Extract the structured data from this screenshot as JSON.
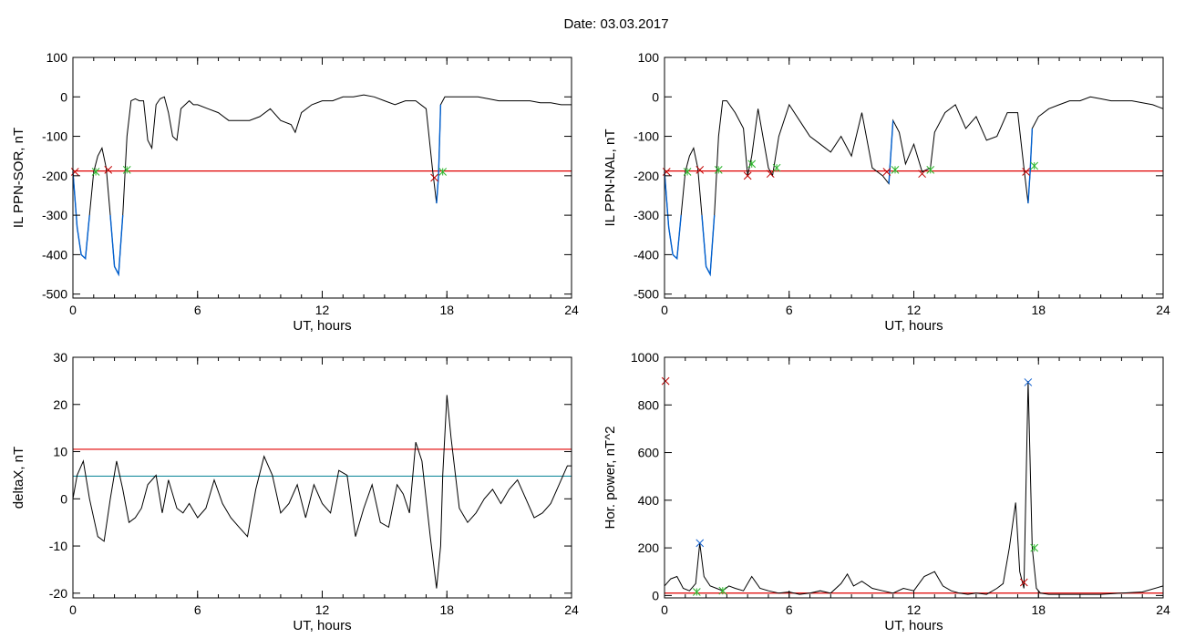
{
  "page_title": "Date:  03.03.2017",
  "colors": {
    "data": "#000000",
    "threshold": "#e00000",
    "cyan": "#1f8fa0",
    "blue": "#0060d0",
    "green": "#2ab52a",
    "red_marker": "#c00000",
    "blue_marker": "#1060d0"
  },
  "chart_data": [
    {
      "type": "line",
      "xlabel": "UT, hours",
      "ylabel": "IL PPN-SOR, nT",
      "xlim": [
        0,
        24
      ],
      "ylim": [
        -510,
        100
      ],
      "xticks": [
        0,
        6,
        12,
        18,
        24
      ],
      "yticks": [
        100,
        0,
        -100,
        -200,
        -300,
        -400,
        -500
      ],
      "thresholds": [
        {
          "value": -188,
          "color": "red"
        }
      ],
      "x": [
        0,
        0.2,
        0.4,
        0.6,
        0.8,
        1.0,
        1.2,
        1.4,
        1.6,
        1.8,
        2.0,
        2.2,
        2.4,
        2.6,
        2.8,
        3.0,
        3.2,
        3.4,
        3.6,
        3.8,
        4.0,
        4.2,
        4.4,
        4.6,
        4.8,
        5.0,
        5.2,
        5.4,
        5.6,
        5.8,
        6.0,
        6.5,
        7.0,
        7.5,
        8.0,
        8.5,
        9.0,
        9.5,
        10.0,
        10.5,
        10.7,
        11.0,
        11.5,
        12.0,
        12.5,
        13.0,
        13.5,
        14.0,
        14.5,
        15.0,
        15.5,
        16.0,
        16.5,
        17.0,
        17.3,
        17.5,
        17.6,
        17.7,
        17.9,
        18.1,
        18.5,
        19.0,
        19.5,
        20.0,
        20.5,
        21.0,
        21.5,
        22.0,
        22.5,
        23.0,
        23.5,
        24.0
      ],
      "values": [
        -190,
        -330,
        -400,
        -410,
        -300,
        -190,
        -150,
        -130,
        -180,
        -300,
        -430,
        -450,
        -300,
        -100,
        -10,
        -5,
        -10,
        -10,
        -110,
        -130,
        -20,
        -5,
        0,
        -40,
        -100,
        -110,
        -30,
        -20,
        -10,
        -20,
        -20,
        -30,
        -40,
        -60,
        -60,
        -60,
        -50,
        -30,
        -60,
        -70,
        -90,
        -40,
        -20,
        -10,
        -10,
        0,
        0,
        5,
        0,
        -10,
        -20,
        -10,
        -10,
        -30,
        -180,
        -270,
        -200,
        -20,
        0,
        0,
        0,
        0,
        0,
        -5,
        -10,
        -10,
        -10,
        -10,
        -15,
        -15,
        -20,
        -20
      ],
      "highlights": [
        {
          "x0": 0,
          "x1": 0.9
        },
        {
          "x0": 1.75,
          "x1": 2.45
        },
        {
          "x0": 17.35,
          "x1": 17.75
        }
      ],
      "markers": [
        {
          "x": 0.1,
          "y": -190,
          "color": "red"
        },
        {
          "x": 1.1,
          "y": -190,
          "color": "green"
        },
        {
          "x": 1.7,
          "y": -185,
          "color": "red"
        },
        {
          "x": 2.6,
          "y": -185,
          "color": "green"
        },
        {
          "x": 17.4,
          "y": -205,
          "color": "red"
        },
        {
          "x": 17.8,
          "y": -190,
          "color": "green"
        }
      ]
    },
    {
      "type": "line",
      "xlabel": "UT, hours",
      "ylabel": "IL PPN-NAL, nT",
      "xlim": [
        0,
        24
      ],
      "ylim": [
        -510,
        100
      ],
      "xticks": [
        0,
        6,
        12,
        18,
        24
      ],
      "yticks": [
        100,
        0,
        -100,
        -200,
        -300,
        -400,
        -500
      ],
      "thresholds": [
        {
          "value": -188,
          "color": "red"
        }
      ],
      "x": [
        0,
        0.2,
        0.4,
        0.6,
        0.8,
        1.0,
        1.2,
        1.4,
        1.6,
        1.8,
        2.0,
        2.2,
        2.4,
        2.6,
        2.8,
        3.0,
        3.4,
        3.8,
        4.0,
        4.2,
        4.5,
        5.0,
        5.2,
        5.5,
        6.0,
        6.5,
        7.0,
        7.5,
        8.0,
        8.5,
        9.0,
        9.5,
        10.0,
        10.5,
        10.8,
        11.0,
        11.3,
        11.6,
        12.0,
        12.4,
        12.8,
        13.0,
        13.5,
        14.0,
        14.5,
        15.0,
        15.5,
        16.0,
        16.5,
        17.0,
        17.3,
        17.5,
        17.6,
        17.7,
        18.0,
        18.5,
        19.0,
        19.5,
        20.0,
        20.5,
        21.0,
        21.5,
        22.0,
        22.5,
        23.0,
        23.5,
        24.0
      ],
      "values": [
        -190,
        -330,
        -400,
        -410,
        -300,
        -190,
        -150,
        -130,
        -180,
        -300,
        -430,
        -450,
        -300,
        -100,
        -10,
        -10,
        -40,
        -80,
        -200,
        -150,
        -30,
        -180,
        -200,
        -100,
        -20,
        -60,
        -100,
        -120,
        -140,
        -100,
        -150,
        -40,
        -180,
        -200,
        -220,
        -60,
        -90,
        -170,
        -120,
        -190,
        -180,
        -90,
        -40,
        -20,
        -80,
        -50,
        -110,
        -100,
        -40,
        -40,
        -180,
        -270,
        -190,
        -80,
        -50,
        -30,
        -20,
        -10,
        -10,
        0,
        -5,
        -10,
        -10,
        -10,
        -15,
        -20,
        -30
      ],
      "highlights": [
        {
          "x0": 0,
          "x1": 0.9
        },
        {
          "x0": 1.75,
          "x1": 2.45
        },
        {
          "x0": 3.95,
          "x1": 4.15
        },
        {
          "x0": 10.7,
          "x1": 11.05
        },
        {
          "x0": 17.35,
          "x1": 17.75
        }
      ],
      "markers": [
        {
          "x": 0.1,
          "y": -190,
          "color": "red"
        },
        {
          "x": 1.1,
          "y": -190,
          "color": "green"
        },
        {
          "x": 1.7,
          "y": -185,
          "color": "red"
        },
        {
          "x": 2.6,
          "y": -185,
          "color": "green"
        },
        {
          "x": 4.0,
          "y": -200,
          "color": "red"
        },
        {
          "x": 4.2,
          "y": -170,
          "color": "green"
        },
        {
          "x": 5.1,
          "y": -195,
          "color": "red"
        },
        {
          "x": 5.4,
          "y": -180,
          "color": "green"
        },
        {
          "x": 10.7,
          "y": -190,
          "color": "red"
        },
        {
          "x": 11.1,
          "y": -185,
          "color": "green"
        },
        {
          "x": 12.4,
          "y": -195,
          "color": "red"
        },
        {
          "x": 12.8,
          "y": -185,
          "color": "green"
        },
        {
          "x": 17.4,
          "y": -190,
          "color": "red"
        },
        {
          "x": 17.8,
          "y": -175,
          "color": "green"
        }
      ]
    },
    {
      "type": "line",
      "xlabel": "UT, hours",
      "ylabel": "deltaX, nT",
      "xlim": [
        0,
        24
      ],
      "ylim": [
        -21,
        30
      ],
      "xticks": [
        0,
        6,
        12,
        18,
        24
      ],
      "yticks": [
        30,
        20,
        10,
        0,
        -10,
        -20
      ],
      "thresholds": [
        {
          "value": 10.5,
          "color": "red"
        },
        {
          "value": 4.8,
          "color": "cyan"
        }
      ],
      "x": [
        0,
        0.2,
        0.5,
        0.8,
        1.2,
        1.5,
        1.8,
        2.1,
        2.4,
        2.7,
        3.0,
        3.3,
        3.6,
        4.0,
        4.3,
        4.6,
        5.0,
        5.3,
        5.6,
        6.0,
        6.4,
        6.8,
        7.2,
        7.6,
        8.0,
        8.4,
        8.8,
        9.2,
        9.6,
        10.0,
        10.4,
        10.8,
        11.2,
        11.6,
        12.0,
        12.4,
        12.8,
        13.2,
        13.6,
        14.0,
        14.4,
        14.8,
        15.2,
        15.6,
        15.9,
        16.2,
        16.5,
        16.8,
        17.2,
        17.5,
        17.7,
        17.8,
        18.0,
        18.2,
        18.6,
        19.0,
        19.4,
        19.8,
        20.2,
        20.6,
        21.0,
        21.4,
        21.8,
        22.2,
        22.6,
        23.0,
        23.4,
        23.8,
        24.0
      ],
      "values": [
        0,
        5,
        8,
        0,
        -8,
        -9,
        0,
        8,
        2,
        -5,
        -4,
        -2,
        3,
        5,
        -3,
        4,
        -2,
        -3,
        -1,
        -4,
        -2,
        4,
        -1,
        -4,
        -6,
        -8,
        2,
        9,
        5,
        -3,
        -1,
        3,
        -4,
        3,
        -1,
        -3,
        6,
        5,
        -8,
        -2,
        3,
        -5,
        -6,
        3,
        1,
        -3,
        12,
        8,
        -8,
        -19,
        -10,
        5,
        22,
        13,
        -2,
        -5,
        -3,
        0,
        2,
        -1,
        2,
        4,
        0,
        -4,
        -3,
        -1,
        3,
        7,
        7
      ],
      "markers": []
    },
    {
      "type": "line",
      "xlabel": "UT, hours",
      "ylabel": "Hor. power, nT^2",
      "xlim": [
        0,
        24
      ],
      "ylim": [
        -10,
        1000
      ],
      "xticks": [
        0,
        6,
        12,
        18,
        24
      ],
      "yticks": [
        1000,
        800,
        600,
        400,
        200,
        0
      ],
      "thresholds": [
        {
          "value": 10,
          "color": "red"
        }
      ],
      "x": [
        0,
        0.3,
        0.6,
        0.9,
        1.2,
        1.5,
        1.7,
        1.9,
        2.2,
        2.5,
        2.8,
        3.1,
        3.4,
        3.8,
        4.2,
        4.6,
        5.0,
        5.5,
        6.0,
        6.5,
        7.0,
        7.5,
        8.0,
        8.5,
        8.8,
        9.1,
        9.5,
        10.0,
        10.5,
        11.0,
        11.5,
        12.0,
        12.5,
        13.0,
        13.4,
        13.8,
        14.2,
        14.6,
        15.0,
        15.5,
        16.0,
        16.3,
        16.6,
        16.9,
        17.1,
        17.3,
        17.5,
        17.7,
        17.9,
        18.1,
        18.5,
        19.0,
        19.5,
        20.0,
        21.0,
        22.0,
        23.0,
        24.0
      ],
      "values": [
        40,
        70,
        80,
        30,
        20,
        50,
        220,
        80,
        40,
        30,
        20,
        40,
        30,
        20,
        80,
        30,
        20,
        10,
        15,
        5,
        10,
        20,
        10,
        50,
        90,
        40,
        60,
        30,
        20,
        10,
        30,
        20,
        80,
        100,
        40,
        20,
        10,
        5,
        10,
        5,
        30,
        50,
        200,
        390,
        100,
        30,
        900,
        200,
        30,
        10,
        5,
        5,
        5,
        5,
        5,
        10,
        15,
        40
      ],
      "markers": [
        {
          "x": 0.05,
          "y": 900,
          "color": "red"
        },
        {
          "x": 1.55,
          "y": 15,
          "color": "green"
        },
        {
          "x": 1.7,
          "y": 220,
          "color": "blue"
        },
        {
          "x": 2.8,
          "y": 20,
          "color": "green"
        },
        {
          "x": 17.3,
          "y": 55,
          "color": "red"
        },
        {
          "x": 17.5,
          "y": 895,
          "color": "blue"
        },
        {
          "x": 17.8,
          "y": 200,
          "color": "green"
        }
      ]
    }
  ]
}
